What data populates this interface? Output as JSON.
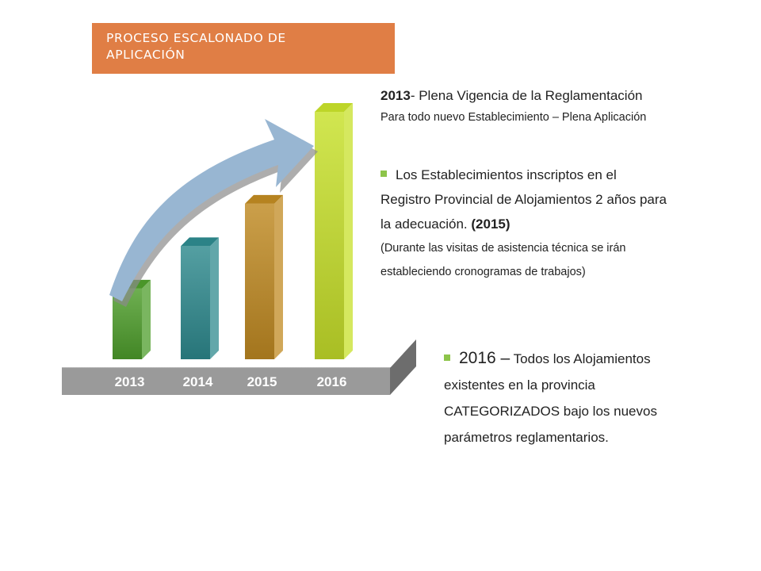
{
  "slide": {
    "title_line1": "PROCESO ESCALONADO DE",
    "title_line2": "APLICACIÓN",
    "title_color": "#E07E45"
  },
  "chart_data": {
    "type": "bar",
    "categories": [
      "2013",
      "2014",
      "2015",
      "2016"
    ],
    "values": [
      1,
      1.6,
      2.2,
      3.5
    ],
    "title": "",
    "xlabel": "",
    "ylabel": "",
    "grid": false,
    "legend": "none",
    "bar_colors": [
      "#4E9E2B",
      "#2E8A8E",
      "#C08A22",
      "#C7E02A"
    ],
    "arrow_color": "#98B6D2",
    "platform_color": "#999999"
  },
  "text": {
    "block1_year": "2013",
    "block1_rest": "- Plena Vigencia de la Reglamentación",
    "block1_sub": "Para todo nuevo Establecimiento – Plena Aplicación",
    "block2_line1": "Los Establecimientos inscriptos en el",
    "block2_line2": "Registro Provincial de Alojamientos 2 años para",
    "block2_line3": "la adecuación.",
    "block2_year": "(2015)",
    "block2_note1": "(Durante las visitas de asistencia técnica se irán",
    "block2_note2": "estableciendo cronogramas de trabajos)",
    "block3_lead": "2016 –",
    "block3_rest": "Todos los Alojamientos",
    "block3_line2": "existentes en la provincia",
    "block3_line3": "CATEGORIZADOS  bajo los nuevos",
    "block3_line4": "parámetros reglamentarios."
  },
  "colors": {
    "bullet": "#8DC44A"
  }
}
